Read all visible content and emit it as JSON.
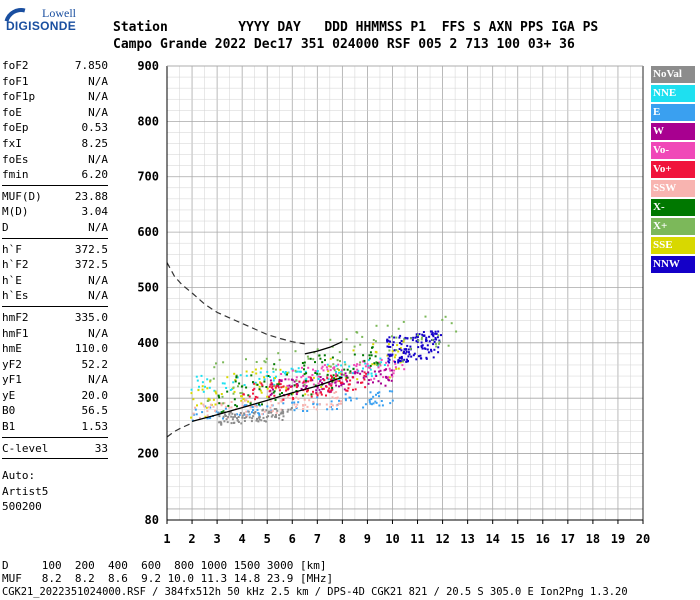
{
  "logo": {
    "top": "Lowell",
    "main": "DIGISONDE"
  },
  "header": {
    "row1": "Station         YYYY DAY   DDD HHMMSS P1  FFS S AXN PPS IGA PS",
    "row2": "Campo Grande 2022 Dec17 351 024000 RSF 005 2 713 100 03+ 36"
  },
  "params": [
    [
      {
        "label": "foF2",
        "value": "7.850"
      },
      {
        "label": "foF1",
        "value": "N/A"
      },
      {
        "label": "foF1p",
        "value": "N/A"
      },
      {
        "label": "foE",
        "value": "N/A"
      },
      {
        "label": "foEp",
        "value": "0.53"
      },
      {
        "label": "fxI",
        "value": "8.25"
      },
      {
        "label": "foEs",
        "value": "N/A"
      },
      {
        "label": "fmin",
        "value": "6.20"
      }
    ],
    [
      {
        "label": "MUF(D)",
        "value": "23.88"
      },
      {
        "label": "M(D)",
        "value": "3.04"
      },
      {
        "label": "D",
        "value": "N/A"
      }
    ],
    [
      {
        "label": "h`F",
        "value": "372.5"
      },
      {
        "label": "h`F2",
        "value": "372.5"
      },
      {
        "label": "h`E",
        "value": "N/A"
      },
      {
        "label": "h`Es",
        "value": "N/A"
      }
    ],
    [
      {
        "label": "hmF2",
        "value": "335.0"
      },
      {
        "label": "hmF1",
        "value": "N/A"
      },
      {
        "label": "hmE",
        "value": "110.0"
      },
      {
        "label": "yF2",
        "value": "52.2"
      },
      {
        "label": "yF1",
        "value": "N/A"
      },
      {
        "label": "yE",
        "value": "20.0"
      },
      {
        "label": "B0",
        "value": "56.5"
      },
      {
        "label": "B1",
        "value": "1.53"
      }
    ],
    [
      {
        "label": "C-level",
        "value": "33"
      }
    ]
  ],
  "auto": {
    "line1": "Auto:",
    "line2": "Artist5",
    "line3": "500200"
  },
  "legend": [
    {
      "label": "NoVal",
      "color": "#8c8c8c"
    },
    {
      "label": "NNE",
      "color": "#1ee0f0"
    },
    {
      "label": "E",
      "color": "#3aa0f0"
    },
    {
      "label": "W",
      "color": "#a80090"
    },
    {
      "label": "Vo-",
      "color": "#f048b8"
    },
    {
      "label": "Vo+",
      "color": "#f0143c"
    },
    {
      "label": "SSW",
      "color": "#f8b4b0"
    },
    {
      "label": "X-",
      "color": "#007800"
    },
    {
      "label": "X+",
      "color": "#7cb85a"
    },
    {
      "label": "SSE",
      "color": "#d8d800"
    },
    {
      "label": "NNW",
      "color": "#1400c8"
    }
  ],
  "bottom": {
    "d_row": "D     100  200  400  600  800 1000 1500 3000 [km]",
    "muf_row": "MUF   8.2  8.2  8.6  9.2 10.0 11.3 14.8 23.9 [MHz]",
    "footer": "CGK21_2022351024000.RSF / 384fx512h 50 kHz 2.5 km / DPS-4D CGK21 821 / 20.5 S 305.0 E Ion2Png 1.3.20"
  },
  "chart_data": {
    "type": "scatter",
    "xlim": [
      1,
      20
    ],
    "ylim": [
      80,
      900
    ],
    "x_ticks": [
      1,
      2,
      3,
      4,
      5,
      6,
      7,
      8,
      9,
      10,
      11,
      12,
      13,
      14,
      15,
      16,
      17,
      18,
      19,
      20
    ],
    "y_ticks": [
      80,
      200,
      300,
      400,
      500,
      600,
      700,
      800,
      900
    ],
    "grid": true,
    "legend_position": "right",
    "profile_dashed": {
      "x": [
        1.0,
        1.3,
        1.6,
        2.0,
        2.5,
        3.0,
        3.5,
        4.0,
        4.5,
        5.0,
        5.5,
        6.0,
        6.5
      ],
      "y": [
        545,
        520,
        505,
        490,
        470,
        455,
        445,
        435,
        425,
        415,
        408,
        402,
        398
      ]
    },
    "profile_lower_dashed": {
      "x": [
        1.0,
        1.3,
        1.6,
        2.0
      ],
      "y": [
        230,
        240,
        247,
        255
      ]
    },
    "trace_lower": {
      "x": [
        2.0,
        3.0,
        4.0,
        5.0,
        6.0,
        7.0,
        7.5,
        8.0
      ],
      "y": [
        258,
        270,
        283,
        296,
        310,
        322,
        330,
        338
      ]
    },
    "trace_upper": {
      "x": [
        6.5,
        7.0,
        7.5,
        8.0
      ],
      "y": [
        380,
        385,
        392,
        402
      ]
    },
    "echo_clusters": [
      {
        "series": "E",
        "x": [
          1.9,
          10.0
        ],
        "y": [
          260,
          320
        ]
      },
      {
        "series": "NNE",
        "x": [
          1.9,
          10.0
        ],
        "y": [
          310,
          380
        ]
      },
      {
        "series": "SSE",
        "x": [
          1.9,
          10.5
        ],
        "y": [
          260,
          420
        ]
      },
      {
        "series": "SSW",
        "x": [
          2.0,
          8.0
        ],
        "y": [
          260,
          330
        ]
      },
      {
        "series": "Vo-",
        "x": [
          5.5,
          10.5
        ],
        "y": [
          300,
          380
        ]
      },
      {
        "series": "W",
        "x": [
          5.0,
          10.0
        ],
        "y": [
          290,
          360
        ]
      },
      {
        "series": "NNW",
        "x": [
          9.7,
          11.9
        ],
        "y": [
          310,
          420
        ]
      },
      {
        "series": "X+",
        "x": [
          2.5,
          12.5
        ],
        "y": [
          280,
          450
        ]
      },
      {
        "series": "X-",
        "x": [
          3.0,
          9.5
        ],
        "y": [
          260,
          420
        ]
      },
      {
        "series": "Vo+",
        "x": [
          4.0,
          9.0
        ],
        "y": [
          280,
          360
        ]
      },
      {
        "series": "NoVal",
        "x": [
          3.0,
          6.0
        ],
        "y": [
          250,
          300
        ]
      }
    ]
  }
}
